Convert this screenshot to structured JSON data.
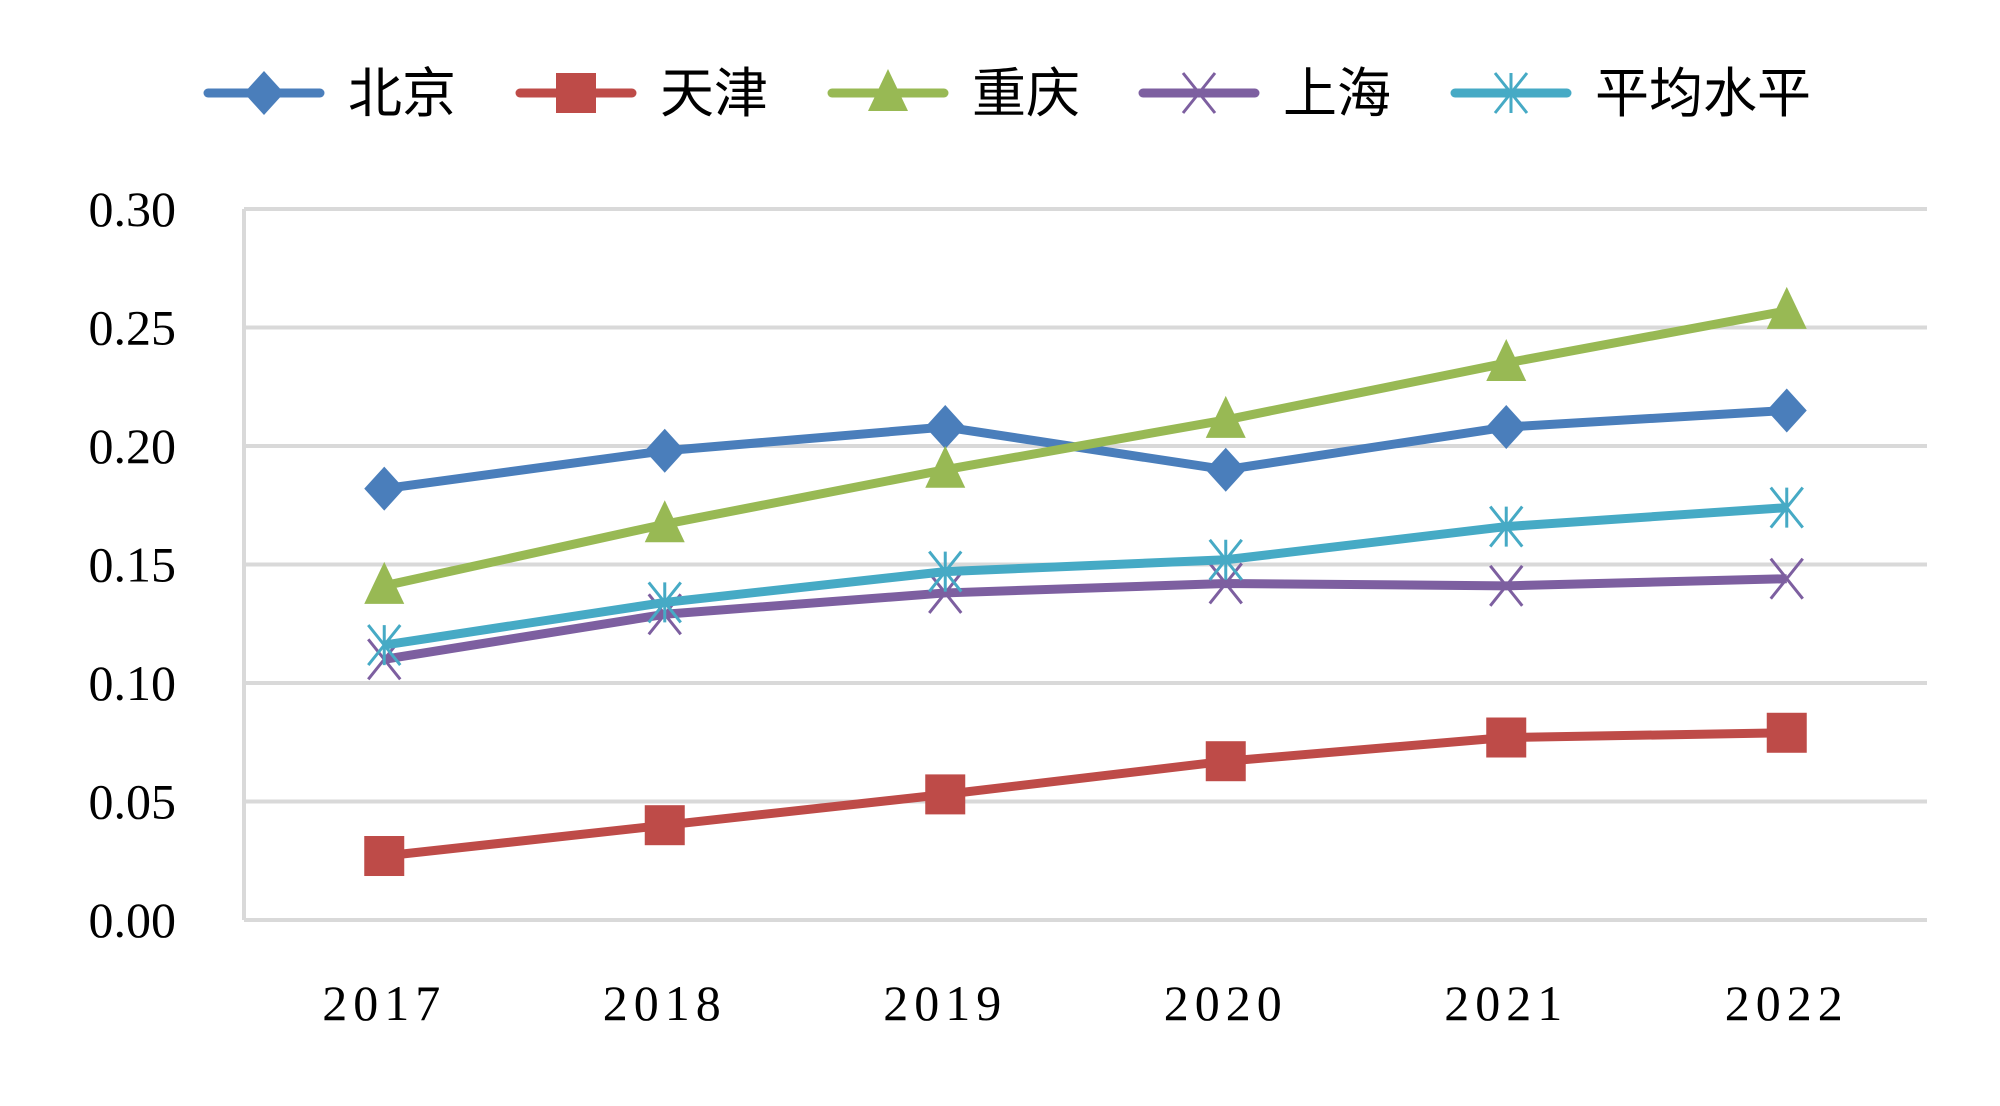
{
  "chart_data": {
    "type": "line",
    "title": "",
    "xlabel": "",
    "ylabel": "",
    "categories": [
      "2017",
      "2018",
      "2019",
      "2020",
      "2021",
      "2022"
    ],
    "ylim": [
      0,
      0.3
    ],
    "yticks": [
      "0.00",
      "0.05",
      "0.10",
      "0.15",
      "0.20",
      "0.25",
      "0.30"
    ],
    "grid": "horizontal",
    "legend_position": "top",
    "series": [
      {
        "name": "北京",
        "color": "#4a7ebb",
        "marker": "diamond",
        "values": [
          0.182,
          0.198,
          0.208,
          0.19,
          0.208,
          0.215
        ]
      },
      {
        "name": "天津",
        "color": "#be4b48",
        "marker": "square",
        "values": [
          0.027,
          0.04,
          0.053,
          0.067,
          0.077,
          0.079
        ]
      },
      {
        "name": "重庆",
        "color": "#98b954",
        "marker": "triangle",
        "values": [
          0.141,
          0.167,
          0.19,
          0.211,
          0.235,
          0.257
        ]
      },
      {
        "name": "上海",
        "color": "#7d5fa0",
        "marker": "x",
        "values": [
          0.11,
          0.129,
          0.138,
          0.142,
          0.141,
          0.144
        ]
      },
      {
        "name": "平均水平",
        "color": "#46aac5",
        "marker": "star",
        "values": [
          0.116,
          0.134,
          0.147,
          0.152,
          0.166,
          0.174
        ]
      }
    ]
  }
}
